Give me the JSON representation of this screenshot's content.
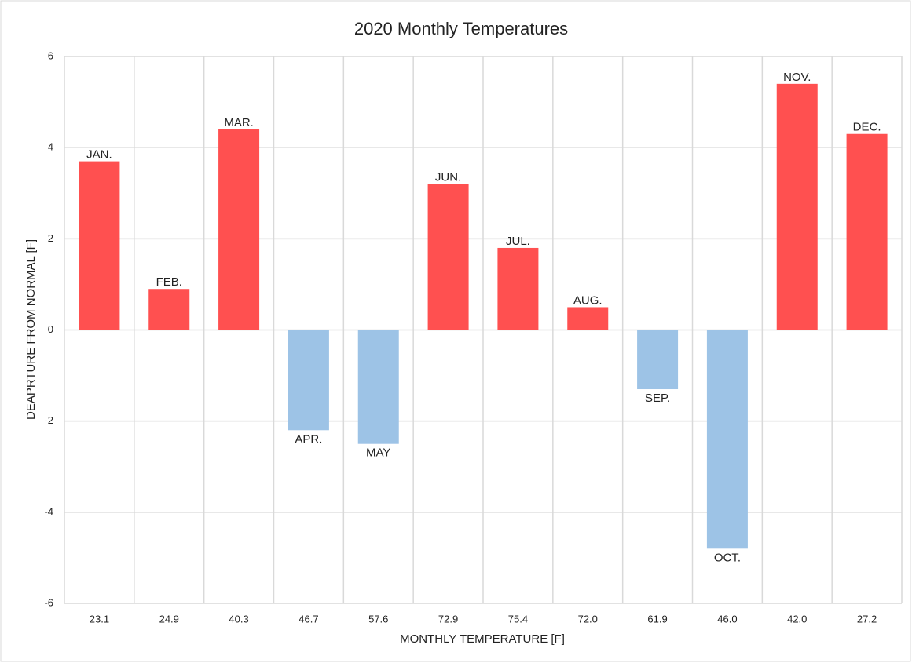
{
  "chart_data": {
    "type": "bar",
    "title": "2020 Monthly  Temperatures",
    "x_label": "MONTHLY TEMPERATURE [F]",
    "y_label": "DEAPRTURE FROM NORMAL [F]",
    "categories": [
      "23.1",
      "24.9",
      "40.3",
      "46.7",
      "57.6",
      "72.9",
      "75.4",
      "72.0",
      "61.9",
      "46.0",
      "42.0",
      "27.2"
    ],
    "values": [
      3.7,
      0.9,
      4.4,
      -2.2,
      -2.5,
      3.2,
      1.8,
      0.5,
      -1.3,
      -4.8,
      5.4,
      4.3
    ],
    "bar_labels": [
      "JAN.",
      "FEB.",
      "MAR.",
      "APR.",
      "MAY",
      "JUN.",
      "JUL.",
      "AUG.",
      "SEP.",
      "OCT.",
      "NOV.",
      "DEC."
    ],
    "positive_color": "#ff5050",
    "negative_color": "#9dc3e6",
    "ylim": [
      -6,
      6
    ],
    "yticks": [
      -6,
      -4,
      -2,
      0,
      2,
      4,
      6
    ],
    "grid": true
  }
}
